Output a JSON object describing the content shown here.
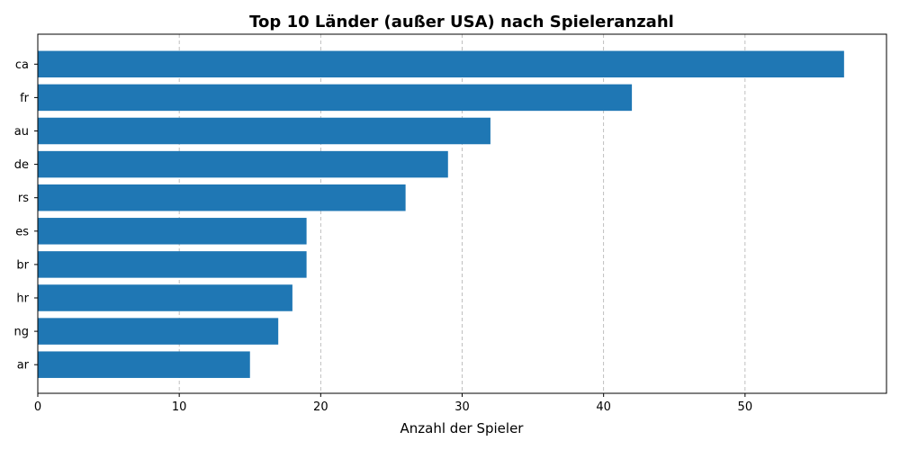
{
  "chart_data": {
    "type": "bar",
    "orientation": "horizontal",
    "title": "Top 10 Länder (außer USA) nach Spieleranzahl",
    "xlabel": "Anzahl der Spieler",
    "ylabel": "",
    "categories": [
      "ca",
      "fr",
      "au",
      "de",
      "rs",
      "es",
      "br",
      "hr",
      "ng",
      "ar"
    ],
    "values": [
      57,
      42,
      32,
      29,
      26,
      19,
      19,
      18,
      17,
      15
    ],
    "xlim": [
      0,
      60
    ],
    "xticks": [
      0,
      10,
      20,
      30,
      40,
      50
    ],
    "grid": "x-dashed",
    "bar_color": "#1f77b4",
    "grid_color": "#b0b0b0"
  }
}
